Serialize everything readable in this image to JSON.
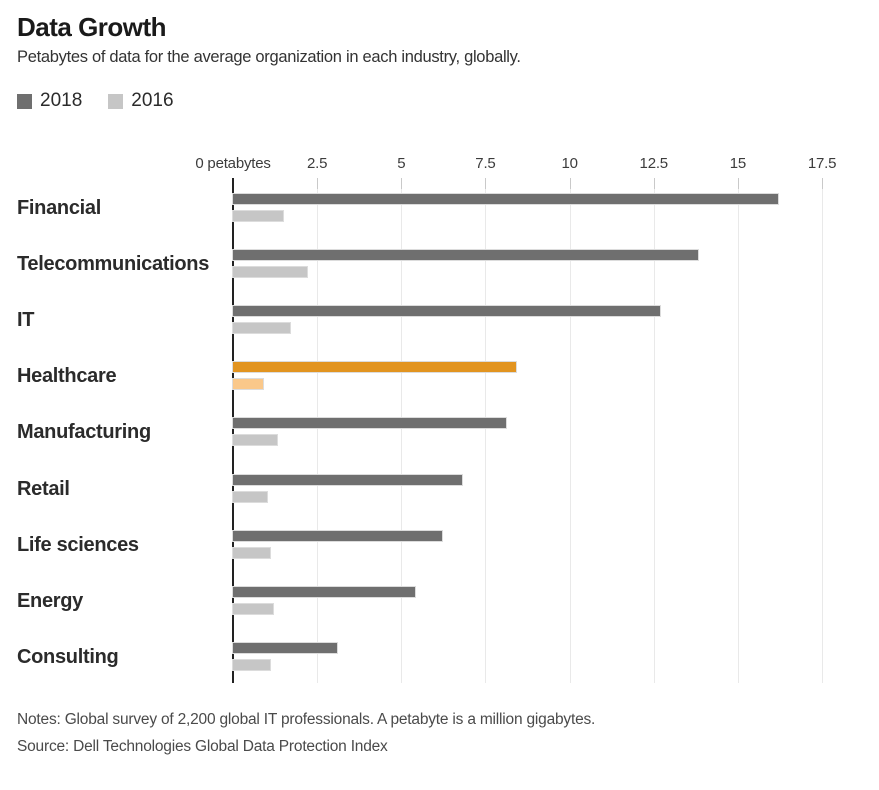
{
  "title": "Data Growth",
  "subtitle": "Petabytes of data for the average organization in each industry, globally.",
  "legend": [
    {
      "label": "2018",
      "color": "#6f6f6f"
    },
    {
      "label": "2016",
      "color": "#c6c6c6"
    }
  ],
  "notes": "Notes: Global survey of 2,200 global IT professionals. A petabyte is a million gigabytes.",
  "source": "Source: Dell Technologies Global Data Protection Index",
  "colors": {
    "bar_2018": "#6f6f6f",
    "bar_2016": "#c6c6c6",
    "highlight_2018": "#e29420",
    "highlight_2016": "#fac88a",
    "axis": "#222222",
    "gridline": "#e9e9e9"
  },
  "chart_data": {
    "type": "bar",
    "orientation": "horizontal",
    "title": "Data Growth",
    "xlabel": "petabytes",
    "ylabel": "",
    "categories": [
      "Financial",
      "Telecommunications",
      "IT",
      "Healthcare",
      "Manufacturing",
      "Retail",
      "Life sciences",
      "Energy",
      "Consulting"
    ],
    "series": [
      {
        "name": "2018",
        "color": "#6f6f6f",
        "values": [
          16.2,
          13.8,
          12.7,
          8.4,
          8.1,
          6.8,
          6.2,
          5.4,
          3.1
        ]
      },
      {
        "name": "2016",
        "color": "#c6c6c6",
        "values": [
          1.5,
          2.2,
          1.7,
          0.9,
          1.3,
          1.0,
          1.1,
          1.2,
          1.1
        ]
      }
    ],
    "highlight": {
      "category": "Healthcare",
      "colors": {
        "2018": "#e29420",
        "2016": "#fac88a"
      }
    },
    "x_axis": {
      "min": 0,
      "max": 17.5,
      "ticks": [
        0,
        2.5,
        5,
        7.5,
        10,
        12.5,
        15,
        17.5
      ],
      "tick_labels": [
        "0 petabytes",
        "2.5",
        "5",
        "7.5",
        "10",
        "12.5",
        "15",
        "17.5"
      ]
    },
    "grid": true,
    "legend_position": "top-left"
  }
}
